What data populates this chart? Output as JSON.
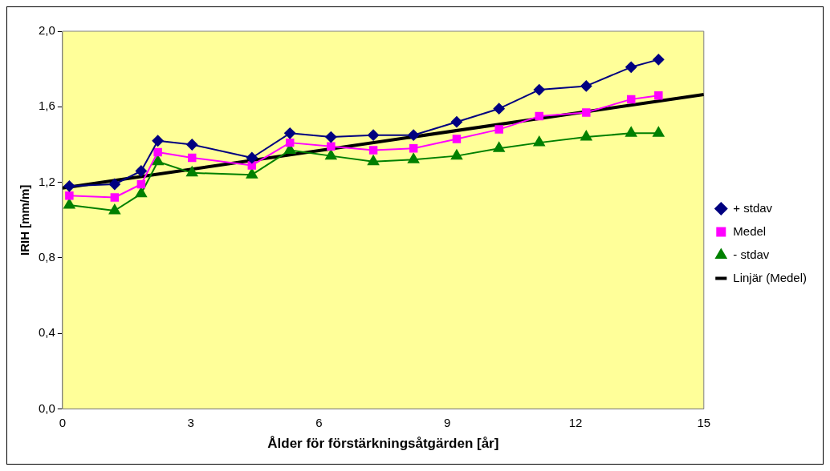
{
  "chart_data": {
    "type": "line",
    "xlabel": "Ålder för förstärkningsåtgärden [år]",
    "ylabel": "IRIH [mm/m]",
    "x": [
      0.16,
      1.22,
      1.84,
      2.23,
      3.03,
      4.43,
      5.32,
      6.28,
      7.27,
      8.21,
      9.22,
      10.21,
      11.15,
      12.25,
      13.3,
      13.94
    ],
    "series": [
      {
        "name": "+ stdav",
        "color": "#000080",
        "marker": "diamond",
        "values": [
          1.18,
          1.19,
          1.26,
          1.42,
          1.4,
          1.33,
          1.46,
          1.44,
          1.45,
          1.45,
          1.52,
          1.59,
          1.69,
          1.71,
          1.81,
          1.85
        ]
      },
      {
        "name": "Medel",
        "color": "#ff00ff",
        "marker": "square",
        "values": [
          1.13,
          1.12,
          1.19,
          1.36,
          1.33,
          1.29,
          1.41,
          1.39,
          1.37,
          1.38,
          1.43,
          1.48,
          1.55,
          1.57,
          1.64,
          1.66
        ]
      },
      {
        "name": "- stdav",
        "color": "#008000",
        "marker": "triangle",
        "values": [
          1.08,
          1.05,
          1.14,
          1.31,
          1.25,
          1.24,
          1.37,
          1.34,
          1.31,
          1.32,
          1.34,
          1.38,
          1.41,
          1.44,
          1.46,
          1.46
        ]
      },
      {
        "name": "Linjär (Medel)",
        "color": "#000000",
        "marker": "none",
        "x": [
          0,
          15
        ],
        "values": [
          1.17,
          1.665
        ]
      }
    ],
    "xlim": [
      0,
      15
    ],
    "xticks": [
      0,
      3,
      6,
      9,
      12,
      15
    ],
    "ylim": [
      0,
      2
    ],
    "yticks": [
      {
        "value": 0,
        "label": "0,0"
      },
      {
        "value": 0.4,
        "label": "0,4"
      },
      {
        "value": 0.8,
        "label": "0,8"
      },
      {
        "value": 1.2,
        "label": "1,2"
      },
      {
        "value": 1.6,
        "label": "1,6"
      },
      {
        "value": 2,
        "label": "2,0"
      }
    ],
    "grid": false,
    "legend": "right",
    "line_style": "solid"
  }
}
